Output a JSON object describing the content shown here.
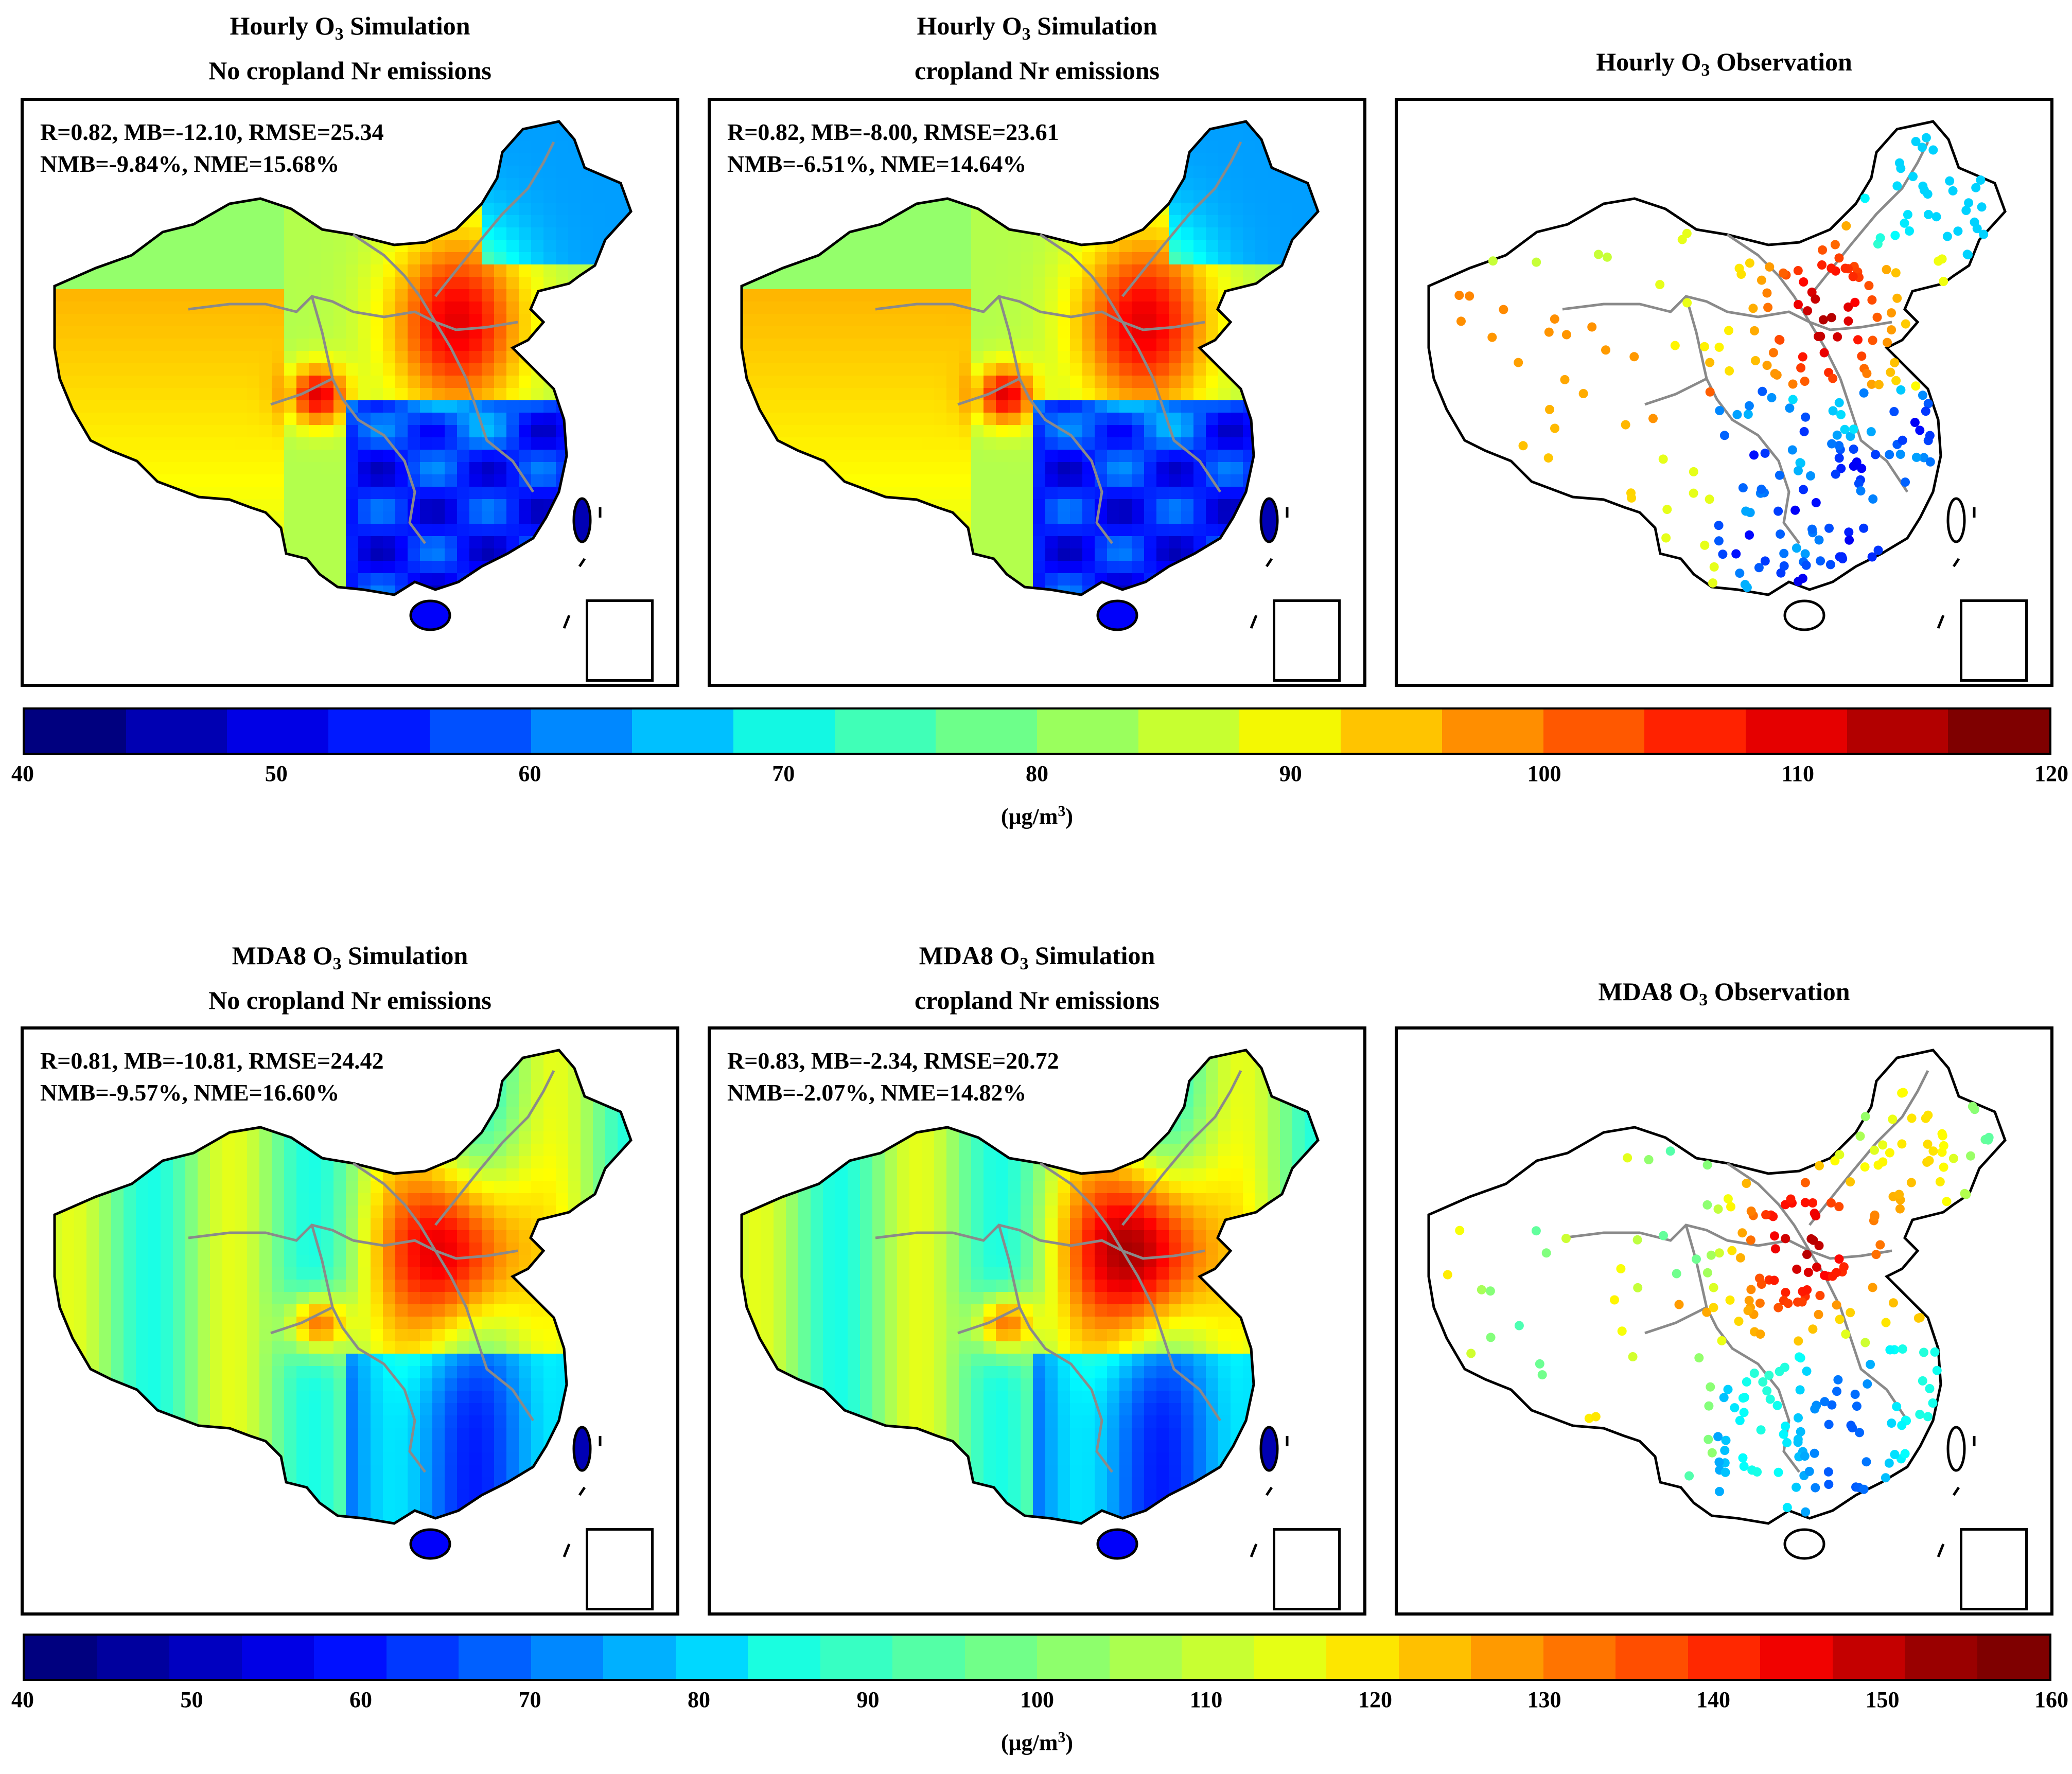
{
  "figure": {
    "top_row": {
      "panels": [
        {
          "title_line1": "Hourly O",
          "title_sub": "3",
          "title_rest": " Simulation",
          "title_line2": "No cropland Nr emissions",
          "stats_line1": "R=0.82, MB=-12.10, RMSE=25.34",
          "stats_line2": "NMB=-9.84%, NME=15.68%"
        },
        {
          "title_line1": "Hourly O",
          "title_sub": "3",
          "title_rest": " Simulation",
          "title_line2": "cropland Nr emissions",
          "stats_line1": "R=0.82, MB=-8.00, RMSE=23.61",
          "stats_line2": "NMB=-6.51%, NME=14.64%"
        },
        {
          "title_line1": "Hourly O",
          "title_sub": "3",
          "title_rest": " Observation"
        }
      ],
      "colorbar": {
        "ticks": [
          "40",
          "50",
          "60",
          "70",
          "80",
          "90",
          "100",
          "110",
          "120"
        ],
        "min": 40,
        "max": 120,
        "unit_main": "(μg/m",
        "unit_sup": "3",
        "unit_end": ")",
        "colors": [
          "#00007f",
          "#0000b2",
          "#0000e5",
          "#0019ff",
          "#0050ff",
          "#0088ff",
          "#00c0ff",
          "#13f8e3",
          "#40ffb7",
          "#6dff8a",
          "#9aff5d",
          "#c7ff30",
          "#f4f802",
          "#ffc400",
          "#ff8e00",
          "#ff5800",
          "#ff2200",
          "#e50000",
          "#b20000",
          "#7f0000"
        ]
      }
    },
    "bottom_row": {
      "panels": [
        {
          "title_line1": "MDA8 O",
          "title_sub": "3",
          "title_rest": " Simulation",
          "title_line2": "No cropland Nr emissions",
          "stats_line1": "R=0.81, MB=-10.81, RMSE=24.42",
          "stats_line2": "NMB=-9.57%, NME=16.60%"
        },
        {
          "title_line1": "MDA8 O",
          "title_sub": "3",
          "title_rest": " Simulation",
          "title_line2": "cropland Nr emissions",
          "stats_line1": "R=0.83, MB=-2.34, RMSE=20.72",
          "stats_line2": "NMB=-2.07%, NME=14.82%"
        },
        {
          "title_line1": "MDA8 O",
          "title_sub": "3",
          "title_rest": " Observation"
        }
      ],
      "colorbar": {
        "ticks": [
          "40",
          "50",
          "60",
          "70",
          "80",
          "90",
          "100",
          "110",
          "120",
          "130",
          "140",
          "150",
          "160"
        ],
        "min": 40,
        "max": 160,
        "unit_main": "(μg/m",
        "unit_sup": "3",
        "unit_end": ")",
        "colors": [
          "#00007f",
          "#00009e",
          "#0000c0",
          "#0000e5",
          "#0010ff",
          "#0038ff",
          "#0060ff",
          "#0088ff",
          "#00b0ff",
          "#00d8ff",
          "#1afee0",
          "#37ffc3",
          "#54ffa6",
          "#71ff89",
          "#8eff6c",
          "#abff4f",
          "#c8ff32",
          "#e5ff15",
          "#fde600",
          "#ffc000",
          "#ff9a00",
          "#ff7400",
          "#ff4e00",
          "#ff2800",
          "#f10200",
          "#c40000",
          "#9a0000",
          "#7f0000"
        ]
      }
    }
  }
}
